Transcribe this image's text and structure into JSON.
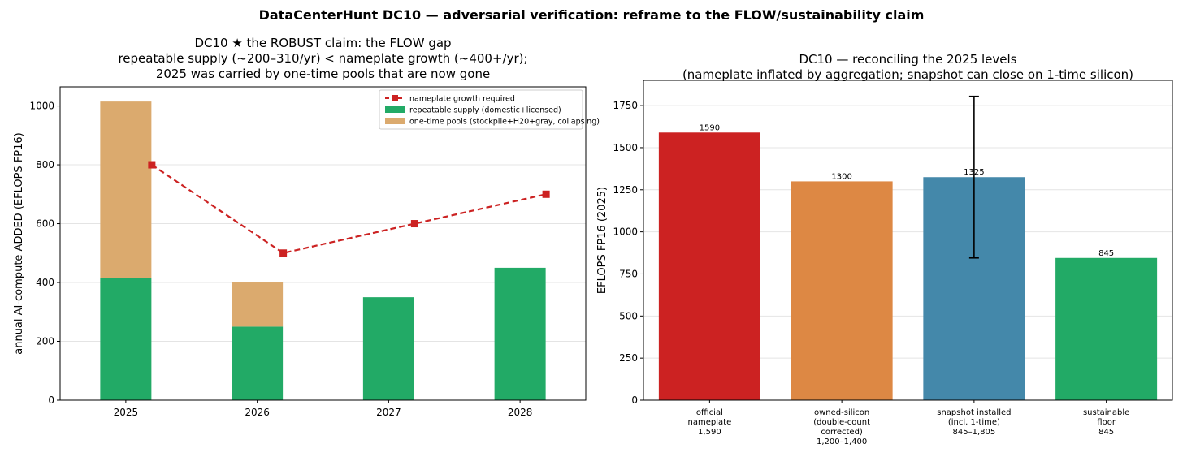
{
  "suptitle": "DataCenterHunt DC10 — adversarial verification: reframe to the FLOW/sustainability claim",
  "chart_data": [
    {
      "type": "bar",
      "title_lines": [
        "DC10 ★ the ROBUST claim: the FLOW gap",
        "repeatable supply (~200–310/yr) < nameplate growth (~400+/yr);",
        "2025 was carried by one-time pools that are now gone"
      ],
      "xlabel": "",
      "ylabel": "annual AI-compute ADDED (EFLOPS FP16)",
      "ylim": [
        0,
        1065
      ],
      "yticks": [
        0,
        200,
        400,
        600,
        800,
        1000
      ],
      "categories": [
        "2025",
        "2026",
        "2027",
        "2028"
      ],
      "grid": "horizontal",
      "legend_position": "upper right",
      "series": [
        {
          "name": "repeatable supply (domestic+licensed)",
          "kind": "bar",
          "color": "#22aa66",
          "values": [
            415,
            250,
            350,
            450
          ]
        },
        {
          "name": "one-time pools (stockpile+H20+gray, collapsing)",
          "kind": "bar-stacked",
          "color": "#dbaa6e",
          "values": [
            600,
            150,
            0,
            0
          ]
        },
        {
          "name": "nameplate growth required",
          "kind": "line",
          "color": "#cc2222",
          "values": [
            800,
            500,
            600,
            700
          ]
        }
      ]
    },
    {
      "type": "bar",
      "title_lines": [
        "DC10 — reconciling the 2025 levels",
        "(nameplate inflated by aggregation; snapshot can close on 1-time silicon)"
      ],
      "xlabel": "",
      "ylabel": "EFLOPS FP16 (2025)",
      "ylim": [
        0,
        1900
      ],
      "yticks": [
        0,
        250,
        500,
        750,
        1000,
        1250,
        1500,
        1750
      ],
      "grid": "horizontal",
      "bars": [
        {
          "label_lines": [
            "official",
            "nameplate",
            "1,590"
          ],
          "value": 1590,
          "value_label": "1590",
          "color": "#cc2222"
        },
        {
          "label_lines": [
            "owned-silicon",
            "(double-count",
            "corrected)",
            "1,200–1,400"
          ],
          "value": 1300,
          "value_label": "1300",
          "color": "#dd8844"
        },
        {
          "label_lines": [
            "snapshot installed",
            "(incl. 1-time)",
            "845–1,805"
          ],
          "value": 1325,
          "value_label": "1325",
          "color": "#4488aa",
          "error_low": 845,
          "error_high": 1805
        },
        {
          "label_lines": [
            "sustainable",
            "floor",
            "845"
          ],
          "value": 845,
          "value_label": "845",
          "color": "#22aa66"
        }
      ]
    }
  ]
}
